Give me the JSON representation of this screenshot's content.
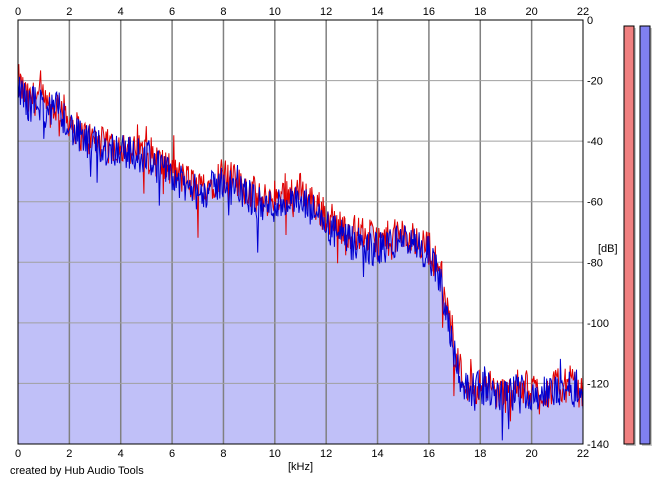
{
  "chart_data": {
    "type": "area",
    "xlabel": "[kHz]",
    "ylabel": "[dB]",
    "xlim": [
      0,
      22
    ],
    "ylim": [
      -140,
      0
    ],
    "x_ticks": [
      "0",
      "2",
      "4",
      "6",
      "8",
      "10",
      "12",
      "14",
      "16",
      "18",
      "20",
      "22"
    ],
    "y_ticks": [
      "0",
      "-20",
      "-40",
      "-60",
      "-80",
      "-100",
      "-120",
      "-140"
    ],
    "grid": true,
    "series": [
      {
        "color": "#e00000",
        "points": [
          [
            0,
            -20
          ],
          [
            0.4,
            -27
          ],
          [
            0.8,
            -25
          ],
          [
            1.2,
            -30
          ],
          [
            1.6,
            -28
          ],
          [
            2.0,
            -33
          ],
          [
            2.5,
            -38
          ],
          [
            3.0,
            -40
          ],
          [
            3.5,
            -42
          ],
          [
            4.0,
            -41
          ],
          [
            4.5,
            -44
          ],
          [
            5.0,
            -43
          ],
          [
            5.5,
            -47
          ],
          [
            6.0,
            -50
          ],
          [
            6.5,
            -53
          ],
          [
            7.0,
            -55
          ],
          [
            7.5,
            -54
          ],
          [
            8.0,
            -50
          ],
          [
            8.5,
            -54
          ],
          [
            9.0,
            -56
          ],
          [
            9.5,
            -60
          ],
          [
            10.0,
            -58
          ],
          [
            10.5,
            -57
          ],
          [
            11.0,
            -56
          ],
          [
            11.5,
            -60
          ],
          [
            12.0,
            -65
          ],
          [
            12.5,
            -68
          ],
          [
            13.0,
            -70
          ],
          [
            13.5,
            -71
          ],
          [
            14.0,
            -73
          ],
          [
            14.5,
            -72
          ],
          [
            15.0,
            -71
          ],
          [
            15.5,
            -73
          ],
          [
            16.0,
            -75
          ],
          [
            16.5,
            -85
          ],
          [
            17.0,
            -108
          ],
          [
            17.3,
            -118
          ],
          [
            17.7,
            -122
          ],
          [
            18.0,
            -120
          ],
          [
            18.5,
            -122
          ],
          [
            19.0,
            -124
          ],
          [
            19.5,
            -121
          ],
          [
            20.0,
            -122
          ],
          [
            20.5,
            -123
          ],
          [
            21.0,
            -121
          ],
          [
            21.5,
            -120
          ],
          [
            22.0,
            -123
          ]
        ]
      },
      {
        "color": "#0000d0",
        "points": [
          [
            0,
            -22
          ],
          [
            0.4,
            -28
          ],
          [
            0.8,
            -27
          ],
          [
            1.2,
            -31
          ],
          [
            1.6,
            -29
          ],
          [
            2.0,
            -35
          ],
          [
            2.5,
            -40
          ],
          [
            3.0,
            -41
          ],
          [
            3.5,
            -43
          ],
          [
            4.0,
            -42
          ],
          [
            4.5,
            -45
          ],
          [
            5.0,
            -44
          ],
          [
            5.5,
            -49
          ],
          [
            6.0,
            -52
          ],
          [
            6.5,
            -55
          ],
          [
            7.0,
            -57
          ],
          [
            7.5,
            -56
          ],
          [
            8.0,
            -53
          ],
          [
            8.5,
            -56
          ],
          [
            9.0,
            -58
          ],
          [
            9.5,
            -62
          ],
          [
            10.0,
            -61
          ],
          [
            10.5,
            -60
          ],
          [
            11.0,
            -61
          ],
          [
            11.5,
            -63
          ],
          [
            12.0,
            -68
          ],
          [
            12.5,
            -71
          ],
          [
            13.0,
            -74
          ],
          [
            13.5,
            -75
          ],
          [
            14.0,
            -76
          ],
          [
            14.5,
            -74
          ],
          [
            15.0,
            -72
          ],
          [
            15.5,
            -75
          ],
          [
            16.0,
            -77
          ],
          [
            16.5,
            -88
          ],
          [
            17.0,
            -110
          ],
          [
            17.3,
            -120
          ],
          [
            17.7,
            -124
          ],
          [
            18.0,
            -121
          ],
          [
            18.5,
            -123
          ],
          [
            19.0,
            -125
          ],
          [
            19.5,
            -122
          ],
          [
            20.0,
            -123
          ],
          [
            20.5,
            -124
          ],
          [
            21.0,
            -122
          ],
          [
            21.5,
            -121
          ],
          [
            22.0,
            -124
          ]
        ]
      }
    ],
    "level_meters": [
      {
        "color": "#f08080",
        "level": 1.0
      },
      {
        "color": "#8080f0",
        "level": 1.0
      }
    ]
  },
  "credit": "created by Hub Audio Tools"
}
